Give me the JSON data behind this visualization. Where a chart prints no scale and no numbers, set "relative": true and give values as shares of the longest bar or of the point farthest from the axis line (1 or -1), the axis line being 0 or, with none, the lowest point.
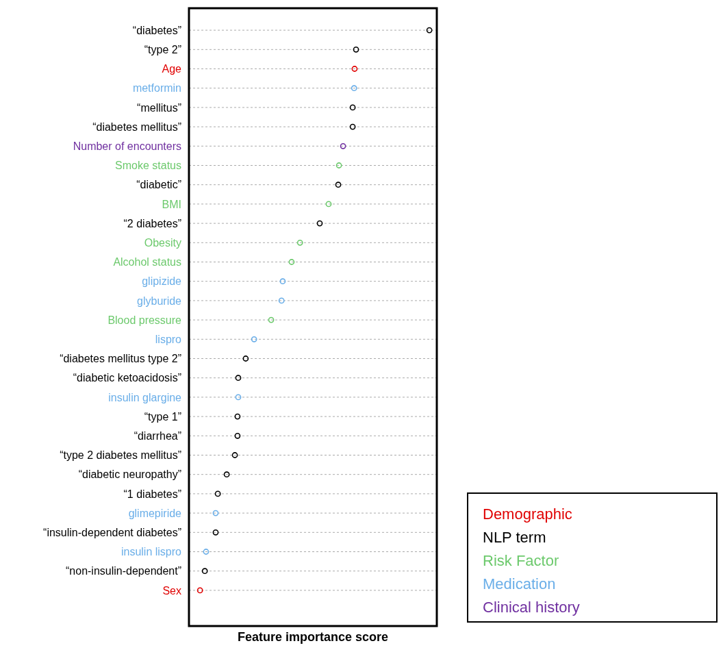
{
  "chart_data": {
    "type": "scatter",
    "orientation": "horizontal",
    "relative": true,
    "xlabel": "Feature importance score",
    "grid": "y",
    "marker": "circle",
    "legend": "bottom right",
    "categories": [
      "“diabetes”",
      "“type 2”",
      "Age",
      "metformin",
      "“mellitus”",
      "“diabetes mellitus”",
      "Number of encounters",
      "Smoke status",
      "“diabetic”",
      "BMI",
      "“2 diabetes”",
      "Obesity",
      "Alcohol status",
      "glipizide",
      "glyburide",
      "Blood pressure",
      "lispro",
      "“diabetes mellitus type 2”",
      "“diabetic ketoacidosis”",
      "insulin glargine",
      "“type 1”",
      "“diarrhea”",
      "“type 2 diabetes mellitus”",
      "“diabetic neuropathy”",
      "“1 diabetes”",
      "glimepiride",
      "“insulin-dependent diabetes”",
      "insulin lispro",
      "“non-insulin-dependent”",
      "Sex"
    ],
    "series": [
      {
        "name": "Demographic",
        "color": "#e00000",
        "values": [
          null,
          null,
          0.689,
          null,
          null,
          null,
          null,
          null,
          null,
          null,
          null,
          null,
          null,
          null,
          null,
          null,
          null,
          null,
          null,
          null,
          null,
          null,
          null,
          null,
          null,
          null,
          null,
          null,
          null,
          0.046
        ]
      },
      {
        "name": "NLP term",
        "color": "#000000",
        "values": [
          1,
          0.695,
          null,
          null,
          0.681,
          0.681,
          null,
          null,
          0.621,
          null,
          0.544,
          null,
          null,
          null,
          null,
          null,
          null,
          0.236,
          0.205,
          null,
          0.202,
          0.202,
          0.191,
          0.157,
          0.12,
          null,
          0.111,
          null,
          0.066,
          null
        ]
      },
      {
        "name": "Risk Factor",
        "color": "#6cc96c",
        "values": [
          null,
          null,
          null,
          null,
          null,
          null,
          null,
          0.624,
          null,
          0.581,
          null,
          0.462,
          0.427,
          null,
          null,
          0.342,
          null,
          null,
          null,
          null,
          null,
          null,
          null,
          null,
          null,
          null,
          null,
          null,
          null,
          null
        ]
      },
      {
        "name": "Medication",
        "color": "#6aaee8",
        "values": [
          null,
          null,
          null,
          0.687,
          null,
          null,
          null,
          null,
          null,
          null,
          null,
          null,
          null,
          0.39,
          0.385,
          null,
          0.271,
          null,
          null,
          0.205,
          null,
          null,
          null,
          null,
          null,
          0.111,
          null,
          0.071,
          null,
          null
        ]
      },
      {
        "name": "Clinical history",
        "color": "#7030a0",
        "values": [
          null,
          null,
          null,
          null,
          null,
          null,
          0.641,
          null,
          null,
          null,
          null,
          null,
          null,
          null,
          null,
          null,
          null,
          null,
          null,
          null,
          null,
          null,
          null,
          null,
          null,
          null,
          null,
          null,
          null,
          null
        ]
      }
    ]
  }
}
